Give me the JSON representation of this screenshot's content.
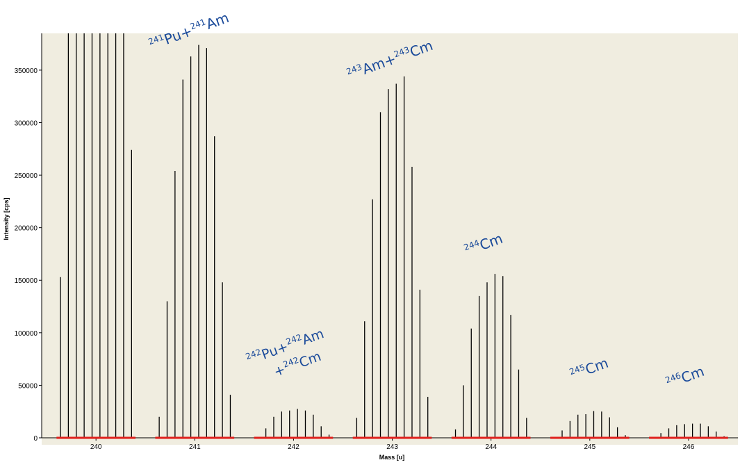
{
  "chart_data": {
    "type": "bar",
    "title": "",
    "xlabel": "Mass [u]",
    "ylabel": "Intensity [cps]",
    "xlim": [
      239.45,
      246.5
    ],
    "ylim": [
      0,
      385000
    ],
    "grid": false,
    "x_ticks": [
      "240",
      "241",
      "242",
      "243",
      "244",
      "245",
      "246"
    ],
    "y_ticks": [
      "0",
      "50000",
      "100000",
      "150000",
      "200000",
      "250000",
      "300000",
      "350000"
    ],
    "colors": {
      "background": "#f0ede0",
      "bars": "#000000",
      "mass_window": "#e0201c",
      "annotation": "#1a4a9a"
    },
    "peaks": [
      {
        "mass": 240,
        "x": [
          239.64,
          239.72,
          239.8,
          239.88,
          239.96,
          240.04,
          240.12,
          240.2,
          240.28,
          240.36
        ],
        "values": [
          153000,
          385000,
          385000,
          385000,
          385000,
          385000,
          385000,
          385000,
          385000,
          274000
        ]
      },
      {
        "mass": 241,
        "x": [
          240.64,
          240.72,
          240.8,
          240.88,
          240.96,
          241.04,
          241.12,
          241.2,
          241.28,
          241.36
        ],
        "values": [
          20000,
          130000,
          254000,
          341000,
          363000,
          374000,
          371000,
          287000,
          148000,
          41000
        ]
      },
      {
        "mass": 242,
        "x": [
          241.64,
          241.72,
          241.8,
          241.88,
          241.96,
          242.04,
          242.12,
          242.2,
          242.28,
          242.36
        ],
        "values": [
          1000,
          9000,
          20000,
          25000,
          26000,
          27500,
          26000,
          22000,
          11000,
          3000
        ]
      },
      {
        "mass": 243,
        "x": [
          242.64,
          242.72,
          242.8,
          242.88,
          242.96,
          243.04,
          243.12,
          243.2,
          243.28,
          243.36
        ],
        "values": [
          19000,
          111000,
          227000,
          310000,
          332000,
          337000,
          344000,
          258000,
          141000,
          39000
        ]
      },
      {
        "mass": 244,
        "x": [
          243.64,
          243.72,
          243.8,
          243.88,
          243.96,
          244.04,
          244.12,
          244.2,
          244.28,
          244.36
        ],
        "values": [
          8000,
          50000,
          104000,
          135000,
          148000,
          156000,
          154000,
          117000,
          65000,
          19000
        ]
      },
      {
        "mass": 245,
        "x": [
          244.64,
          244.72,
          244.8,
          244.88,
          244.96,
          245.04,
          245.12,
          245.2,
          245.28,
          245.36
        ],
        "values": [
          1000,
          7000,
          16000,
          22000,
          22500,
          25500,
          25000,
          19500,
          10000,
          2500
        ]
      },
      {
        "mass": 246,
        "x": [
          245.64,
          245.72,
          245.8,
          245.88,
          245.96,
          246.04,
          246.12,
          246.2,
          246.28,
          246.36
        ],
        "values": [
          500,
          4500,
          9000,
          12000,
          13000,
          13500,
          13500,
          11000,
          6000,
          1500
        ]
      }
    ],
    "mass_windows": [
      {
        "mass": 240,
        "from": 239.6,
        "to": 240.4
      },
      {
        "mass": 241,
        "from": 240.6,
        "to": 241.4
      },
      {
        "mass": 242,
        "from": 241.6,
        "to": 242.4
      },
      {
        "mass": 243,
        "from": 242.6,
        "to": 243.4
      },
      {
        "mass": 244,
        "from": 243.6,
        "to": 244.4
      },
      {
        "mass": 245,
        "from": 244.6,
        "to": 245.4
      },
      {
        "mass": 246,
        "from": 245.6,
        "to": 246.4
      }
    ],
    "annotations": [
      {
        "id": "241",
        "parts": [
          {
            "sup": "241",
            "base": "Pu"
          },
          {
            "sup": "",
            "base": "+"
          },
          {
            "sup": "241",
            "base": "Am"
          }
        ]
      },
      {
        "id": "242a",
        "parts": [
          {
            "sup": "242",
            "base": "Pu"
          },
          {
            "sup": "",
            "base": "+"
          },
          {
            "sup": "242",
            "base": "Am"
          }
        ]
      },
      {
        "id": "242b",
        "parts": [
          {
            "sup": "",
            "base": "+"
          },
          {
            "sup": "242",
            "base": "Cm"
          }
        ]
      },
      {
        "id": "243",
        "parts": [
          {
            "sup": "243",
            "base": "Am"
          },
          {
            "sup": "",
            "base": "+"
          },
          {
            "sup": "243",
            "base": "Cm"
          }
        ]
      },
      {
        "id": "244",
        "parts": [
          {
            "sup": "244",
            "base": "Cm"
          }
        ]
      },
      {
        "id": "245",
        "parts": [
          {
            "sup": "245",
            "base": "Cm"
          }
        ]
      },
      {
        "id": "246",
        "parts": [
          {
            "sup": "246",
            "base": "Cm"
          }
        ]
      }
    ]
  }
}
